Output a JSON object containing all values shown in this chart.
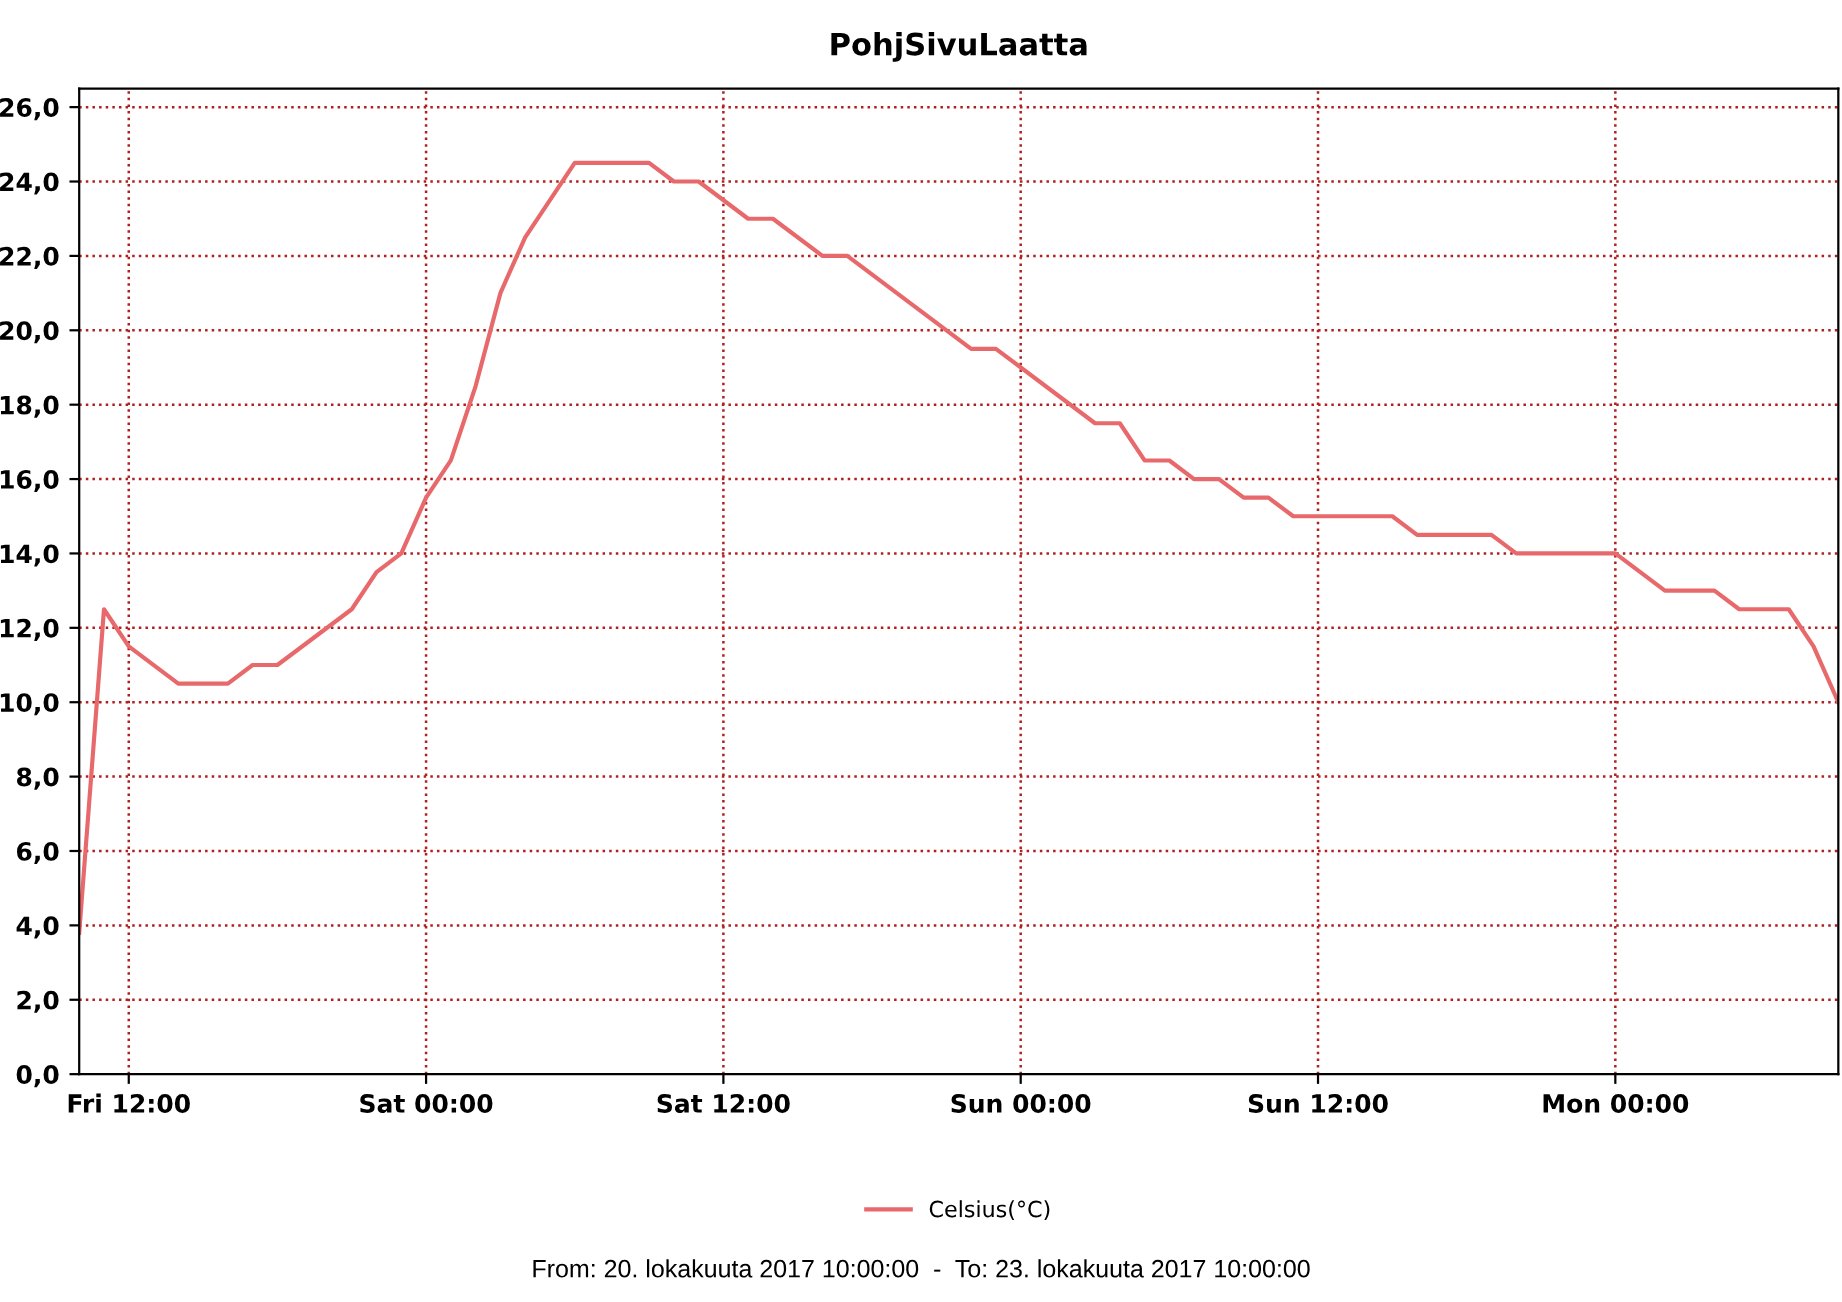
{
  "chart_data": {
    "type": "line",
    "title": "PohjSivuLaatta",
    "x": [
      "2017-10-20T10:00",
      "2017-10-20T11:00",
      "2017-10-20T12:00",
      "2017-10-20T14:00",
      "2017-10-20T16:00",
      "2017-10-20T17:00",
      "2017-10-20T18:00",
      "2017-10-20T21:00",
      "2017-10-20T22:00",
      "2017-10-20T23:00",
      "2017-10-21T00:00",
      "2017-10-21T01:00",
      "2017-10-21T02:00",
      "2017-10-21T03:00",
      "2017-10-21T04:00",
      "2017-10-21T06:00",
      "2017-10-21T09:00",
      "2017-10-21T10:00",
      "2017-10-21T11:00",
      "2017-10-21T13:00",
      "2017-10-21T14:00",
      "2017-10-21T16:00",
      "2017-10-21T17:00",
      "2017-10-21T22:00",
      "2017-10-21T23:00",
      "2017-10-22T03:00",
      "2017-10-22T04:00",
      "2017-10-22T05:00",
      "2017-10-22T06:00",
      "2017-10-22T07:00",
      "2017-10-22T08:00",
      "2017-10-22T09:00",
      "2017-10-22T10:00",
      "2017-10-22T11:00",
      "2017-10-22T15:00",
      "2017-10-22T16:00",
      "2017-10-22T19:00",
      "2017-10-22T20:00",
      "2017-10-23T00:00",
      "2017-10-23T02:00",
      "2017-10-23T04:00",
      "2017-10-23T05:00",
      "2017-10-23T07:00",
      "2017-10-23T08:00",
      "2017-10-23T09:00"
    ],
    "series": [
      {
        "name": "Celsius(°C)",
        "color": "#e8696b",
        "values": [
          3.8,
          12.5,
          11.5,
          10.5,
          10.5,
          11.0,
          11.0,
          12.5,
          13.5,
          14.0,
          15.5,
          16.5,
          18.5,
          21.0,
          22.5,
          24.5,
          24.5,
          24.0,
          24.0,
          23.0,
          23.0,
          22.0,
          22.0,
          19.5,
          19.5,
          17.5,
          17.5,
          16.5,
          16.5,
          16.0,
          16.0,
          15.5,
          15.5,
          15.0,
          15.0,
          14.5,
          14.5,
          14.0,
          14.0,
          13.0,
          13.0,
          12.5,
          12.5,
          11.5,
          10.0
        ]
      }
    ],
    "xlim": [
      "2017-10-20T10:00",
      "2017-10-23T09:00"
    ],
    "xticks": [
      {
        "value": "2017-10-20T12:00",
        "label": "Fri 12:00"
      },
      {
        "value": "2017-10-21T00:00",
        "label": "Sat 00:00"
      },
      {
        "value": "2017-10-21T12:00",
        "label": "Sat 12:00"
      },
      {
        "value": "2017-10-22T00:00",
        "label": "Sun 00:00"
      },
      {
        "value": "2017-10-22T12:00",
        "label": "Sun 12:00"
      },
      {
        "value": "2017-10-23T00:00",
        "label": "Mon 00:00"
      }
    ],
    "ylim": [
      0,
      26.5
    ],
    "yticks": [
      {
        "value": 0,
        "label": "0,0"
      },
      {
        "value": 2,
        "label": "2,0"
      },
      {
        "value": 4,
        "label": "4,0"
      },
      {
        "value": 6,
        "label": "6,0"
      },
      {
        "value": 8,
        "label": "8,0"
      },
      {
        "value": 10,
        "label": "10,0"
      },
      {
        "value": 12,
        "label": "12,0"
      },
      {
        "value": 14,
        "label": "14,0"
      },
      {
        "value": 16,
        "label": "16,0"
      },
      {
        "value": 18,
        "label": "18,0"
      },
      {
        "value": 20,
        "label": "20,0"
      },
      {
        "value": 22,
        "label": "22,0"
      },
      {
        "value": 24,
        "label": "24,0"
      },
      {
        "value": 26,
        "label": "26,0"
      }
    ],
    "grid": true,
    "legend": "bottom",
    "marker": "none",
    "line_style": "solid",
    "annotations": [
      "From: 20. lokakuuta 2017 10:00:00  -  To: 23. lokakuuta 2017 10:00:00"
    ]
  }
}
